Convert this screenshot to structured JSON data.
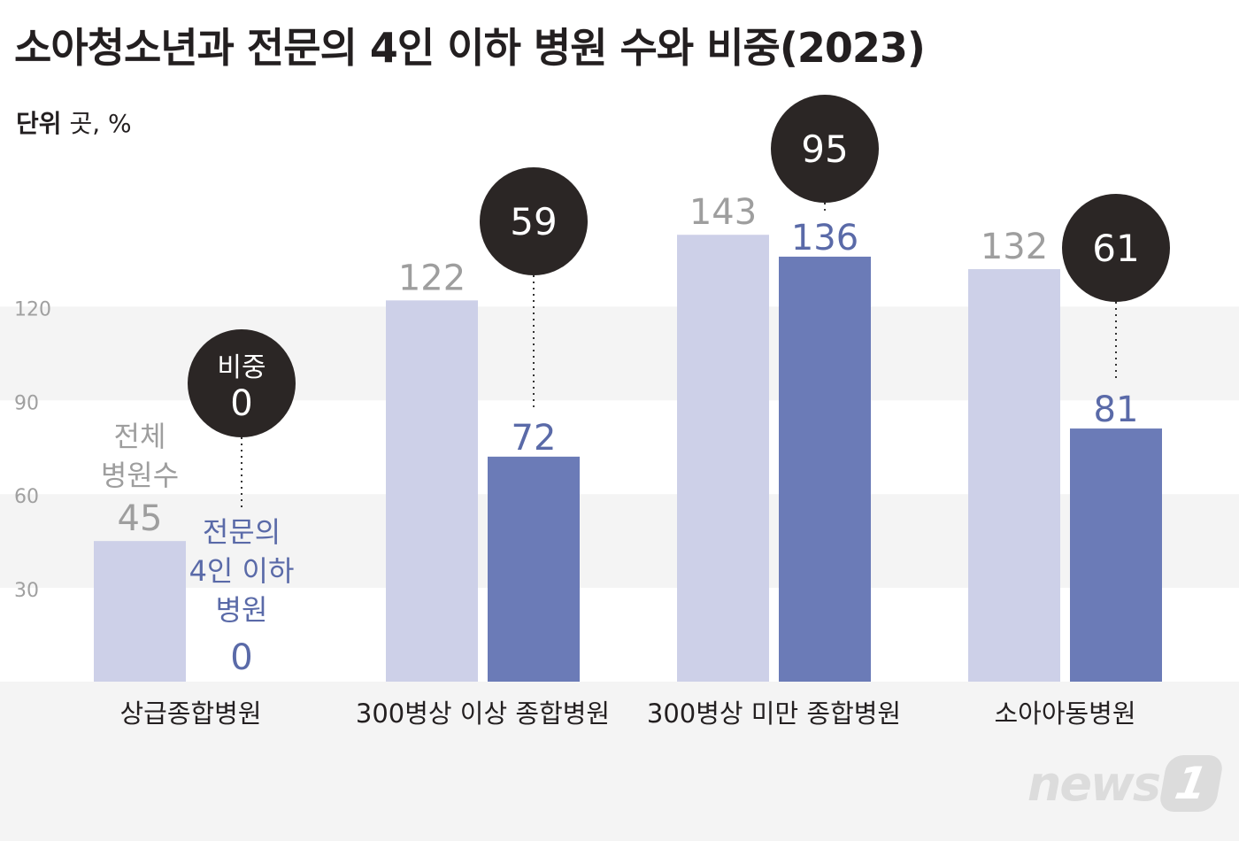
{
  "title": "소아청소년과 전문의 4인 이하 병원 수와 비중(2023)",
  "unit_label": "단위",
  "unit_value": "곳, %",
  "logo": {
    "text": "news",
    "mark": "1"
  },
  "colors": {
    "total": "#cdd0e8",
    "specialist": "#6b7bb7",
    "total_label": "#9e9e9e",
    "specialist_label": "#5a6aa8",
    "bubble": "#2b2625",
    "band": "#f4f4f4",
    "text": "#231f20"
  },
  "chart_data": {
    "type": "bar",
    "title": "소아청소년과 전문의 4인 이하 병원 수와 비중(2023)",
    "ylabel": "",
    "xlabel": "",
    "ylim": [
      0,
      150
    ],
    "yticks": [
      30,
      60,
      90,
      120
    ],
    "categories": [
      "상급종합병원",
      "300병상 이상 종합병원",
      "300병상 미만 종합병원",
      "소아아동병원"
    ],
    "series": [
      {
        "name": "전체 병원수",
        "values": [
          45,
          122,
          143,
          132
        ]
      },
      {
        "name": "전문의 4인 이하 병원",
        "values": [
          0,
          72,
          136,
          81
        ]
      }
    ],
    "share_label": "비중",
    "share_percent": [
      0,
      59,
      95,
      61
    ],
    "annotations": {
      "total_series_lines": [
        "전체",
        "병원수"
      ],
      "specialist_series_lines": [
        "전문의",
        "4인 이하",
        "병원"
      ]
    }
  }
}
